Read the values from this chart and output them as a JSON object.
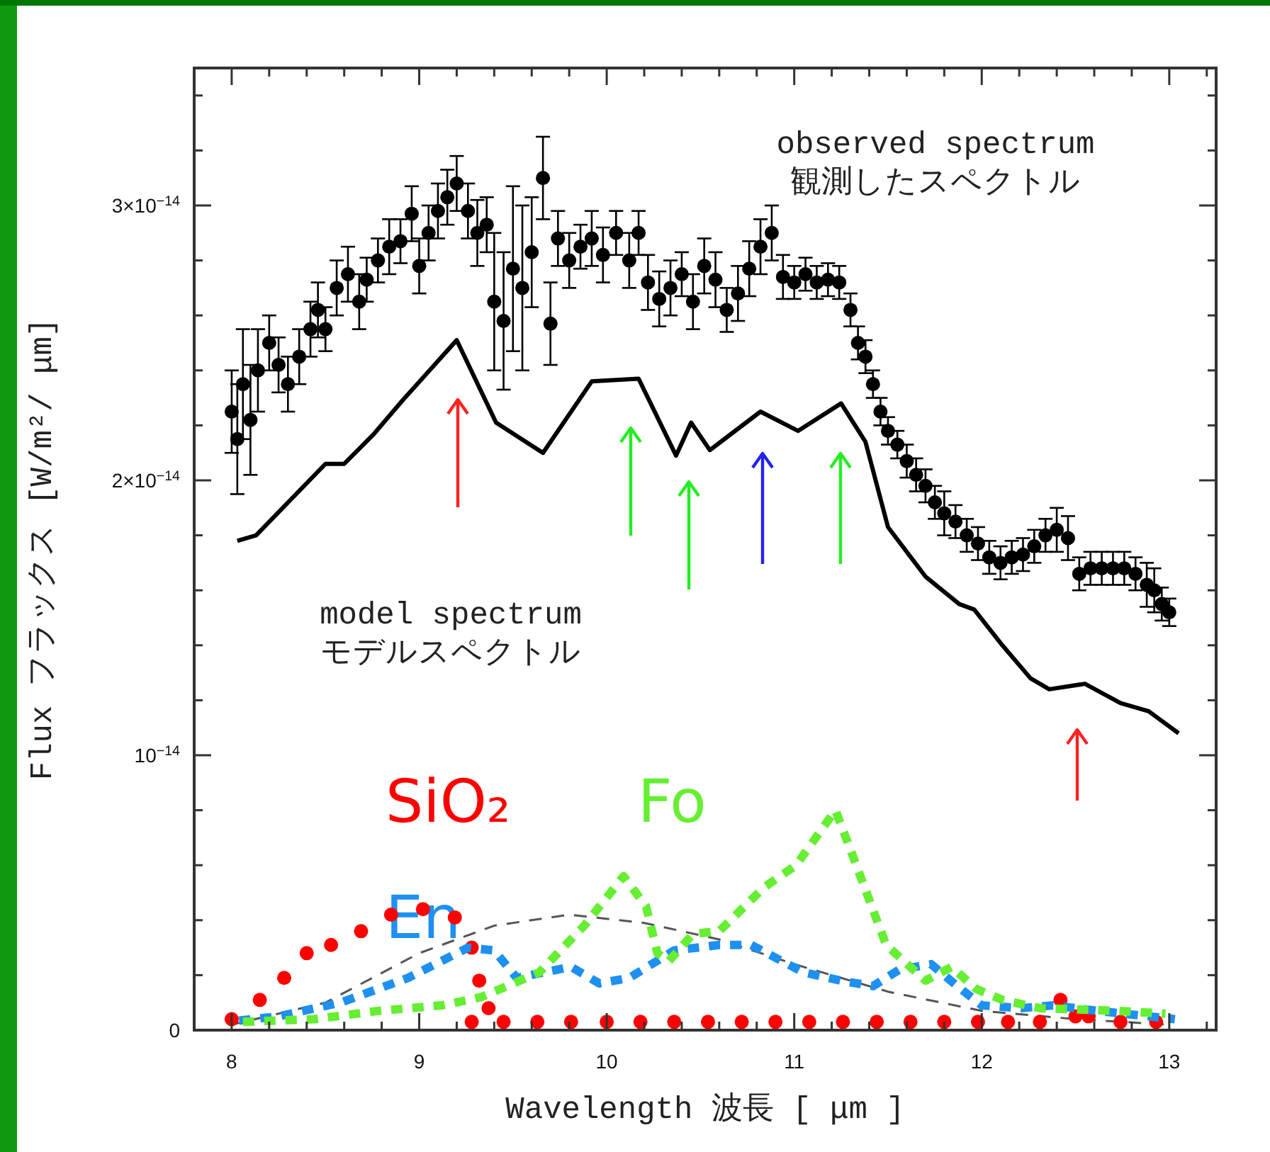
{
  "chart_data": {
    "type": "scatter",
    "xlabel": "Wavelength  波長  [ μm ]",
    "ylabel": "Flux  フラックス  [W/m²/ μm]",
    "annotations": [
      "observed spectrum\n観測したスペクトル",
      "model spectrum\nモデルスペクトル"
    ],
    "xlim": [
      7.8,
      13.25
    ],
    "ylim": [
      0,
      3.5e-14
    ],
    "xticks": [
      {
        "value": 7.8,
        "label": null
      },
      8,
      {
        "value": 8.2,
        "label": null
      },
      {
        "value": 8.4,
        "label": null
      },
      {
        "value": 8.6,
        "label": null
      },
      {
        "value": 8.8,
        "label": null
      },
      9,
      {
        "value": 9.2,
        "label": null
      },
      {
        "value": 9.4,
        "label": null
      },
      {
        "value": 9.6,
        "label": null
      },
      {
        "value": 9.8,
        "label": null
      },
      10,
      {
        "value": 10.2,
        "label": null
      },
      {
        "value": 10.4,
        "label": null
      },
      {
        "value": 10.6,
        "label": null
      },
      {
        "value": 10.8,
        "label": null
      },
      11,
      {
        "value": 11.2,
        "label": null
      },
      {
        "value": 11.4,
        "label": null
      },
      {
        "value": 11.6,
        "label": null
      },
      {
        "value": 11.8,
        "label": null
      },
      12,
      {
        "value": 12.2,
        "label": null
      },
      {
        "value": 12.4,
        "label": null
      },
      {
        "value": 12.6,
        "label": null
      },
      {
        "value": 12.8,
        "label": null
      },
      13,
      {
        "value": 13.2,
        "label": null
      }
    ],
    "yticks": [
      0,
      {
        "value": 2e-15,
        "label": null
      },
      {
        "value": 4e-15,
        "label": null
      },
      {
        "value": 6e-15,
        "label": null
      },
      {
        "value": 8e-15,
        "label": null
      },
      {
        "value": 1e-14,
        "label": "10$^{−14}$"
      },
      {
        "value": 1.2e-14,
        "label": null
      },
      {
        "value": 1.4e-14,
        "label": null
      },
      {
        "value": 1.6e-14,
        "label": null
      },
      {
        "value": 1.8e-14,
        "label": null
      },
      {
        "value": 2e-14,
        "label": "2×10$^{−14}$"
      },
      {
        "value": 2.2e-14,
        "label": null
      },
      {
        "value": 2.4e-14,
        "label": null
      },
      {
        "value": 2.6e-14,
        "label": null
      },
      {
        "value": 2.8e-14,
        "label": null
      },
      {
        "value": 3e-14,
        "label": "3×10$^{−14}$"
      },
      {
        "value": 3.2e-14,
        "label": null
      },
      {
        "value": 3.4e-14,
        "label": null
      }
    ],
    "series": [
      {
        "type": "line",
        "color": "#555555",
        "line_style": "dashed",
        "x": [
          8.0,
          8.5,
          9.0,
          9.4,
          9.8,
          10.2,
          10.6,
          11.0,
          11.5,
          12.0,
          12.5,
          13.0
        ],
        "values": [
          2e-16,
          1e-15,
          2.8e-15,
          3.8e-15,
          4.2e-15,
          3.9e-15,
          3.3e-15,
          2.4e-15,
          1.4e-15,
          7e-16,
          4e-16,
          2e-16
        ]
      },
      {
        "name": "SiO₂",
        "color": "#ff0000",
        "marker": "circle",
        "x": [
          8.0,
          8.15,
          8.28,
          8.4,
          8.53,
          8.69,
          8.85,
          9.02,
          9.19,
          9.28,
          9.32,
          9.37,
          9.28,
          9.45,
          9.63,
          9.81,
          10.0,
          10.18,
          10.36,
          10.54,
          10.72,
          10.9,
          11.08,
          11.26,
          11.44,
          11.62,
          11.8,
          11.98,
          12.14,
          12.31,
          12.42,
          12.5,
          12.57,
          12.74,
          12.93
        ],
        "values": [
          4e-16,
          1.1e-15,
          1.9e-15,
          2.8e-15,
          3.1e-15,
          3.6e-15,
          4.2e-15,
          4.4e-15,
          4.1e-15,
          3e-15,
          1.8e-15,
          8e-16,
          3e-16,
          3e-16,
          3e-16,
          3e-16,
          3e-16,
          3e-16,
          3e-16,
          3e-16,
          3e-16,
          3e-16,
          3e-16,
          3e-16,
          3e-16,
          3e-16,
          3e-16,
          3e-16,
          3e-16,
          3e-16,
          1.1e-15,
          5e-16,
          5e-16,
          3e-16,
          3e-16
        ]
      },
      {
        "type": "line",
        "name": "En",
        "color": "#1e90f0",
        "line_style": "dashed",
        "x": [
          8.04,
          8.25,
          8.58,
          8.94,
          9.26,
          9.4,
          9.52,
          9.81,
          9.96,
          10.12,
          10.36,
          10.6,
          10.77,
          11.05,
          11.25,
          11.42,
          11.56,
          11.73,
          11.87,
          12.0,
          12.21,
          12.38,
          12.62,
          13.03
        ],
        "values": [
          3.5e-16,
          5e-16,
          1e-15,
          1.9e-15,
          3e-15,
          2.9e-15,
          1.9e-15,
          2.3e-15,
          1.7e-15,
          1.9e-15,
          2.9e-15,
          3.1e-15,
          3.1e-15,
          2.1e-15,
          1.8e-15,
          1.6e-15,
          2.2e-15,
          2.4e-15,
          1.6e-15,
          9e-16,
          8e-16,
          9e-16,
          7e-16,
          4e-16
        ]
      },
      {
        "type": "line",
        "name": "Fo",
        "color": "#66ee33",
        "line_style": "dashed",
        "x": [
          8.06,
          8.44,
          8.78,
          9.12,
          9.33,
          9.64,
          9.88,
          10.09,
          10.21,
          10.27,
          10.33,
          10.46,
          10.6,
          10.84,
          11.01,
          11.22,
          11.32,
          11.49,
          11.7,
          11.84,
          11.97,
          12.11,
          12.31,
          12.73,
          12.98
        ],
        "values": [
          3e-16,
          4e-16,
          7e-16,
          9e-16,
          1.2e-15,
          2.1e-15,
          3.8e-15,
          5.6e-15,
          4.5e-15,
          2.8e-15,
          2.5e-15,
          3.5e-15,
          3.6e-15,
          5.2e-15,
          6e-15,
          8e-15,
          6.2e-15,
          3.1e-15,
          1.8e-15,
          2.3e-15,
          1.5e-15,
          1.1e-15,
          8e-16,
          7e-16,
          6e-16
        ]
      },
      {
        "type": "line",
        "color": "#000000",
        "line_style": "solid",
        "x": [
          8.03,
          8.13,
          8.5,
          8.6,
          8.76,
          8.91,
          9.2,
          9.41,
          9.66,
          9.92,
          10.17,
          10.37,
          10.45,
          10.55,
          10.82,
          11.02,
          11.25,
          11.38,
          11.5,
          11.7,
          11.88,
          11.96,
          12.11,
          12.26,
          12.36,
          12.55,
          12.74,
          12.89,
          13.05
        ],
        "values": [
          1.78e-14,
          1.8e-14,
          2.06e-14,
          2.06e-14,
          2.17e-14,
          2.29e-14,
          2.51e-14,
          2.21e-14,
          2.1e-14,
          2.36e-14,
          2.37e-14,
          2.09e-14,
          2.21e-14,
          2.11e-14,
          2.25e-14,
          2.18e-14,
          2.28e-14,
          2.14e-14,
          1.83e-14,
          1.65e-14,
          1.55e-14,
          1.53e-14,
          1.4e-14,
          1.28e-14,
          1.24e-14,
          1.26e-14,
          1.19e-14,
          1.16e-14,
          1.08e-14
        ]
      },
      {
        "color": "#000000",
        "marker": "circle",
        "x": [
          8.0,
          8.03,
          8.06,
          8.1,
          8.14,
          8.2,
          8.25,
          8.3,
          8.36,
          8.42,
          8.46,
          8.5,
          8.56,
          8.62,
          8.68,
          8.72,
          8.78,
          8.84,
          8.9,
          8.96,
          9.0,
          9.05,
          9.1,
          9.15,
          9.2,
          9.26,
          9.31,
          9.36,
          9.4,
          9.45,
          9.5,
          9.55,
          9.6,
          9.66,
          9.7,
          9.74,
          9.8,
          9.86,
          9.92,
          9.98,
          10.05,
          10.12,
          10.17,
          10.22,
          10.28,
          10.34,
          10.4,
          10.46,
          10.52,
          10.58,
          10.64,
          10.7,
          10.76,
          10.82,
          10.88,
          10.94,
          11.0,
          11.06,
          11.12,
          11.18,
          11.24,
          11.3,
          11.34,
          11.38,
          11.42,
          11.46,
          11.5,
          11.55,
          11.6,
          11.65,
          11.7,
          11.75,
          11.8,
          11.86,
          11.92,
          11.98,
          12.04,
          12.1,
          12.16,
          12.22,
          12.28,
          12.34,
          12.4,
          12.46,
          12.52,
          12.58,
          12.64,
          12.7,
          12.76,
          12.82,
          12.88,
          12.92,
          12.96,
          13.0
        ],
        "values": [
          2.25e-14,
          2.15e-14,
          2.35e-14,
          2.22e-14,
          2.4e-14,
          2.5e-14,
          2.42e-14,
          2.35e-14,
          2.45e-14,
          2.55e-14,
          2.62e-14,
          2.55e-14,
          2.7e-14,
          2.75e-14,
          2.65e-14,
          2.73e-14,
          2.8e-14,
          2.85e-14,
          2.87e-14,
          2.97e-14,
          2.78e-14,
          2.9e-14,
          2.98e-14,
          3.03e-14,
          3.08e-14,
          2.98e-14,
          2.9e-14,
          2.93e-14,
          2.65e-14,
          2.58e-14,
          2.77e-14,
          2.7e-14,
          2.83e-14,
          3.1e-14,
          2.57e-14,
          2.88e-14,
          2.8e-14,
          2.85e-14,
          2.88e-14,
          2.82e-14,
          2.9e-14,
          2.8e-14,
          2.9e-14,
          2.72e-14,
          2.66e-14,
          2.7e-14,
          2.75e-14,
          2.65e-14,
          2.78e-14,
          2.73e-14,
          2.62e-14,
          2.68e-14,
          2.77e-14,
          2.85e-14,
          2.9e-14,
          2.74e-14,
          2.72e-14,
          2.75e-14,
          2.72e-14,
          2.73e-14,
          2.72e-14,
          2.62e-14,
          2.5e-14,
          2.45e-14,
          2.35e-14,
          2.25e-14,
          2.18e-14,
          2.13e-14,
          2.07e-14,
          2.02e-14,
          1.98e-14,
          1.92e-14,
          1.88e-14,
          1.85e-14,
          1.8e-14,
          1.77e-14,
          1.72e-14,
          1.7e-14,
          1.72e-14,
          1.73e-14,
          1.76e-14,
          1.8e-14,
          1.82e-14,
          1.79e-14,
          1.66e-14,
          1.68e-14,
          1.68e-14,
          1.68e-14,
          1.68e-14,
          1.66e-14,
          1.62e-14,
          1.6e-14,
          1.55e-14,
          1.52e-14
        ],
        "errors": [
          1.5e-15,
          2e-15,
          2e-15,
          2e-15,
          1.5e-15,
          1e-15,
          1e-15,
          1e-15,
          1e-15,
          1e-15,
          1e-15,
          8e-16,
          1e-15,
          1e-15,
          1e-15,
          8e-16,
          8e-16,
          1e-15,
          8e-16,
          1e-15,
          1e-15,
          1e-15,
          1e-15,
          1e-15,
          1e-15,
          1e-15,
          1.2e-15,
          1e-15,
          2.5e-15,
          2.5e-15,
          3e-15,
          3e-15,
          2e-15,
          1.5e-15,
          1.5e-15,
          1e-15,
          1e-15,
          8e-16,
          1e-15,
          1e-15,
          8e-16,
          1e-15,
          8e-16,
          1e-15,
          1e-15,
          1e-15,
          8e-16,
          1e-15,
          1e-15,
          1e-15,
          8e-16,
          1e-15,
          1e-15,
          1e-15,
          1e-15,
          8e-16,
          6e-16,
          6e-16,
          6e-16,
          6e-16,
          6e-16,
          6e-16,
          6e-16,
          6e-16,
          5e-16,
          5e-16,
          5e-16,
          5e-16,
          6e-16,
          6e-16,
          6e-16,
          6e-16,
          8e-16,
          6e-16,
          6e-16,
          6e-16,
          6e-16,
          6e-16,
          6e-16,
          6e-16,
          6e-16,
          6e-16,
          8e-16,
          8e-16,
          6e-16,
          6e-16,
          6e-16,
          6e-16,
          6e-16,
          6e-16,
          8e-16,
          8e-16,
          6e-16,
          5e-16
        ]
      }
    ]
  }
}
